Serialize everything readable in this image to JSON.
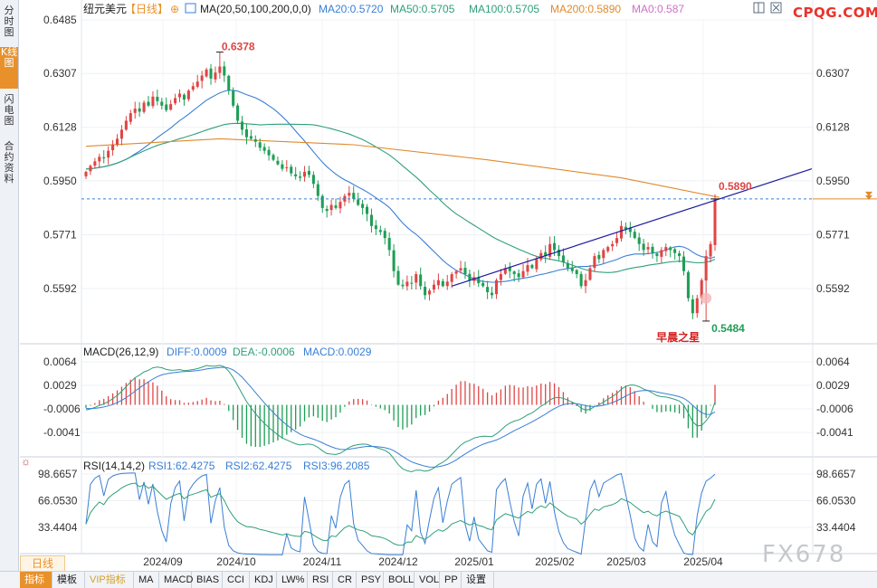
{
  "sidebar": {
    "tabs": [
      {
        "label": "分时图",
        "active": false
      },
      {
        "label": "K线图",
        "active": true
      },
      {
        "label": "闪电图",
        "active": false
      },
      {
        "label": "合约资料",
        "active": false
      }
    ]
  },
  "logo": "CPQG.COM",
  "watermark": "FX678",
  "period": "日线",
  "header": {
    "symbol": "纽元美元",
    "period_tag": "【日线】",
    "ma_label": "MA(20,50,100,200,0,0)",
    "ma20": "MA20:0.5720",
    "ma50": "MA50:0.5705",
    "ma100": "MA100:0.5705",
    "ma200": "MA200:0.5890",
    "ma0": "MA0:0.587"
  },
  "macd": {
    "label": "MACD(26,12,9)",
    "diff": "DIFF:0.0009",
    "dea": "DEA:-0.0006",
    "macd": "MACD:0.0029"
  },
  "rsi": {
    "label": "RSI(14,14,2)",
    "rsi1": "RSI1:62.4275",
    "rsi2": "RSI2:62.4275",
    "rsi3": "RSI3:96.2085"
  },
  "toolbar": [
    "指标",
    "模板",
    "VIP指标",
    "MA",
    "MACD",
    "BIAS",
    "CCI",
    "KDJ",
    "LW%",
    "RSI",
    "CR",
    "PSY",
    "BOLL",
    "VOL",
    "PP",
    "设置"
  ],
  "annotations": {
    "high_label": "0.6378",
    "low_label": "0.5484",
    "current_label": "0.5890",
    "pattern_label": "早晨之星"
  },
  "colors": {
    "up": "#e04545",
    "down": "#1e9e55",
    "ma20": "#3a7fd5",
    "ma50": "#2fa07a",
    "ma200": "#e08a2c",
    "trendline": "#1a1aa0",
    "accent": "#e8912b"
  },
  "chart_data": [
    {
      "type": "candlestick",
      "title": "纽元美元【日线】",
      "ylim": [
        0.547,
        0.65
      ],
      "y_ticks": [
        "0.6485",
        "0.6307",
        "0.6128",
        "0.5950",
        "0.5771",
        "0.5592"
      ],
      "y_ticks_right": [
        "0.6307",
        "0.6128",
        "0.5950",
        "0.5771",
        "0.5592"
      ],
      "x_ticks": [
        "2024/09",
        "2024/10",
        "2024/11",
        "2024/12",
        "2025/01",
        "2025/02",
        "2025/03",
        "2025/04"
      ],
      "close": [
        0.598,
        0.6,
        0.6015,
        0.603,
        0.6025,
        0.605,
        0.607,
        0.609,
        0.612,
        0.615,
        0.6175,
        0.619,
        0.618,
        0.621,
        0.62,
        0.623,
        0.6215,
        0.62,
        0.6185,
        0.6205,
        0.6225,
        0.624,
        0.622,
        0.625,
        0.6265,
        0.628,
        0.63,
        0.632,
        0.629,
        0.631,
        0.633,
        0.63,
        0.625,
        0.62,
        0.615,
        0.612,
        0.6095,
        0.609,
        0.608,
        0.606,
        0.605,
        0.6035,
        0.602,
        0.6005,
        0.599,
        0.5995,
        0.5975,
        0.5965,
        0.596,
        0.598,
        0.597,
        0.594,
        0.59,
        0.586,
        0.585,
        0.587,
        0.586,
        0.588,
        0.59,
        0.591,
        0.589,
        0.587,
        0.586,
        0.584,
        0.58,
        0.579,
        0.578,
        0.576,
        0.572,
        0.565,
        0.5605,
        0.56,
        0.5615,
        0.561,
        0.564,
        0.56,
        0.557,
        0.5585,
        0.5605,
        0.562,
        0.56,
        0.5615,
        0.564,
        0.565,
        0.566,
        0.564,
        0.562,
        0.563,
        0.561,
        0.56,
        0.558,
        0.557,
        0.562,
        0.564,
        0.566,
        0.565,
        0.564,
        0.563,
        0.565,
        0.567,
        0.566,
        0.569,
        0.571,
        0.57,
        0.574,
        0.572,
        0.57,
        0.568,
        0.566,
        0.565,
        0.564,
        0.56,
        0.562,
        0.566,
        0.57,
        0.569,
        0.572,
        0.573,
        0.574,
        0.576,
        0.58,
        0.579,
        0.578,
        0.576,
        0.574,
        0.572,
        0.573,
        0.571,
        0.57,
        0.572,
        0.573,
        0.572,
        0.571,
        0.57,
        0.565,
        0.556,
        0.551,
        0.556,
        0.562,
        0.57,
        0.574,
        0.589
      ],
      "ma_periods": [
        20,
        50,
        200
      ],
      "pre_roll_closes": [
        0.601,
        0.5995,
        0.6005,
        0.599,
        0.598,
        0.5995,
        0.5985,
        0.5975,
        0.599,
        0.598
      ],
      "ma200_path": [
        [
          0,
          0.6065
        ],
        [
          30,
          0.609
        ],
        [
          60,
          0.607
        ],
        [
          90,
          0.602
        ],
        [
          120,
          0.596
        ],
        [
          142,
          0.5895
        ]
      ],
      "price_line": 0.589,
      "trendline": [
        [
          82,
          0.56
        ],
        [
          142,
          0.589
        ]
      ]
    },
    {
      "type": "bar+line",
      "title": "MACD(26,12,9)",
      "ylim": [
        -0.007,
        0.008
      ],
      "y_ticks": [
        "0.0064",
        "0.0029",
        "-0.0006",
        "-0.0041"
      ],
      "series": [
        {
          "name": "DIFF",
          "color": "#1e9e55"
        },
        {
          "name": "DEA",
          "color": "#3a7fd5"
        },
        {
          "name": "MACD",
          "color": "#e04545"
        }
      ]
    },
    {
      "type": "line",
      "title": "RSI(14,14,2)",
      "ylim": [
        0,
        100
      ],
      "y_ticks": [
        "98.6657",
        "66.0530",
        "33.4404"
      ],
      "series": [
        {
          "name": "RSI1",
          "color": "#2fa07a"
        },
        {
          "name": "RSI3",
          "color": "#3a7fd5"
        }
      ]
    }
  ]
}
